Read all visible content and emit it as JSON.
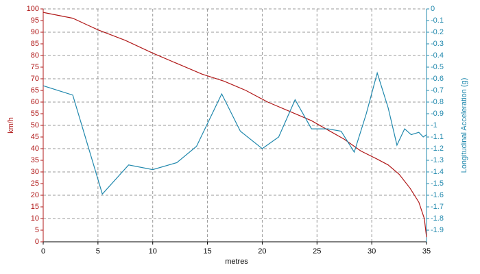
{
  "chart_data": {
    "type": "line",
    "x_label": "metres",
    "y_label": "km/h",
    "y2_label": "Longitudinal Acceleration (g)",
    "xlim": [
      0,
      35
    ],
    "xticks": [
      0,
      5,
      10,
      15,
      20,
      25,
      30,
      35
    ],
    "ylim": [
      0,
      100
    ],
    "yticks": [
      0,
      5,
      10,
      15,
      20,
      25,
      30,
      35,
      40,
      45,
      50,
      55,
      60,
      65,
      70,
      75,
      80,
      85,
      90,
      95,
      100
    ],
    "y2lim": [
      -2,
      0
    ],
    "y2ticks": [
      0,
      -0.1,
      -0.2,
      -0.3,
      -0.4,
      -0.5,
      -0.6,
      -0.7,
      -0.8,
      -0.9,
      -1,
      -1.1,
      -1.2,
      -1.3,
      -1.4,
      -1.5,
      -1.6,
      -1.7,
      -1.8,
      -1.9
    ],
    "grid": true,
    "series": [
      {
        "color": "#b01818",
        "axis": "y",
        "x": [
          0,
          2.7,
          5,
          7.5,
          10,
          12.5,
          14.5,
          16.5,
          18.5,
          20.5,
          22.5,
          24.5,
          26,
          27.5,
          29,
          30.5,
          31.5,
          32.5,
          33.5,
          34.3,
          34.8,
          35
        ],
        "values": [
          98.5,
          96,
          91,
          86.5,
          81,
          76,
          72,
          69,
          65,
          60,
          56,
          52,
          48,
          44,
          39,
          35.5,
          33,
          29,
          23,
          17,
          10,
          2
        ]
      },
      {
        "color": "#2088ad",
        "axis": "y2",
        "x": [
          0,
          2.7,
          5.4,
          7.8,
          10,
          12.2,
          14,
          16.3,
          18,
          20,
          21.5,
          23,
          24.5,
          26,
          27.2,
          28.4,
          29.5,
          30.5,
          31.5,
          32.3,
          33,
          33.6,
          34.3,
          34.7,
          35
        ],
        "values": [
          -0.66,
          -0.74,
          -1.59,
          -1.34,
          -1.38,
          -1.32,
          -1.18,
          -0.73,
          -1.05,
          -1.2,
          -1.1,
          -0.78,
          -1.03,
          -1.03,
          -1.05,
          -1.23,
          -0.9,
          -0.55,
          -0.85,
          -1.17,
          -1.03,
          -1.08,
          -1.06,
          -1.1,
          -1.08
        ]
      }
    ]
  }
}
